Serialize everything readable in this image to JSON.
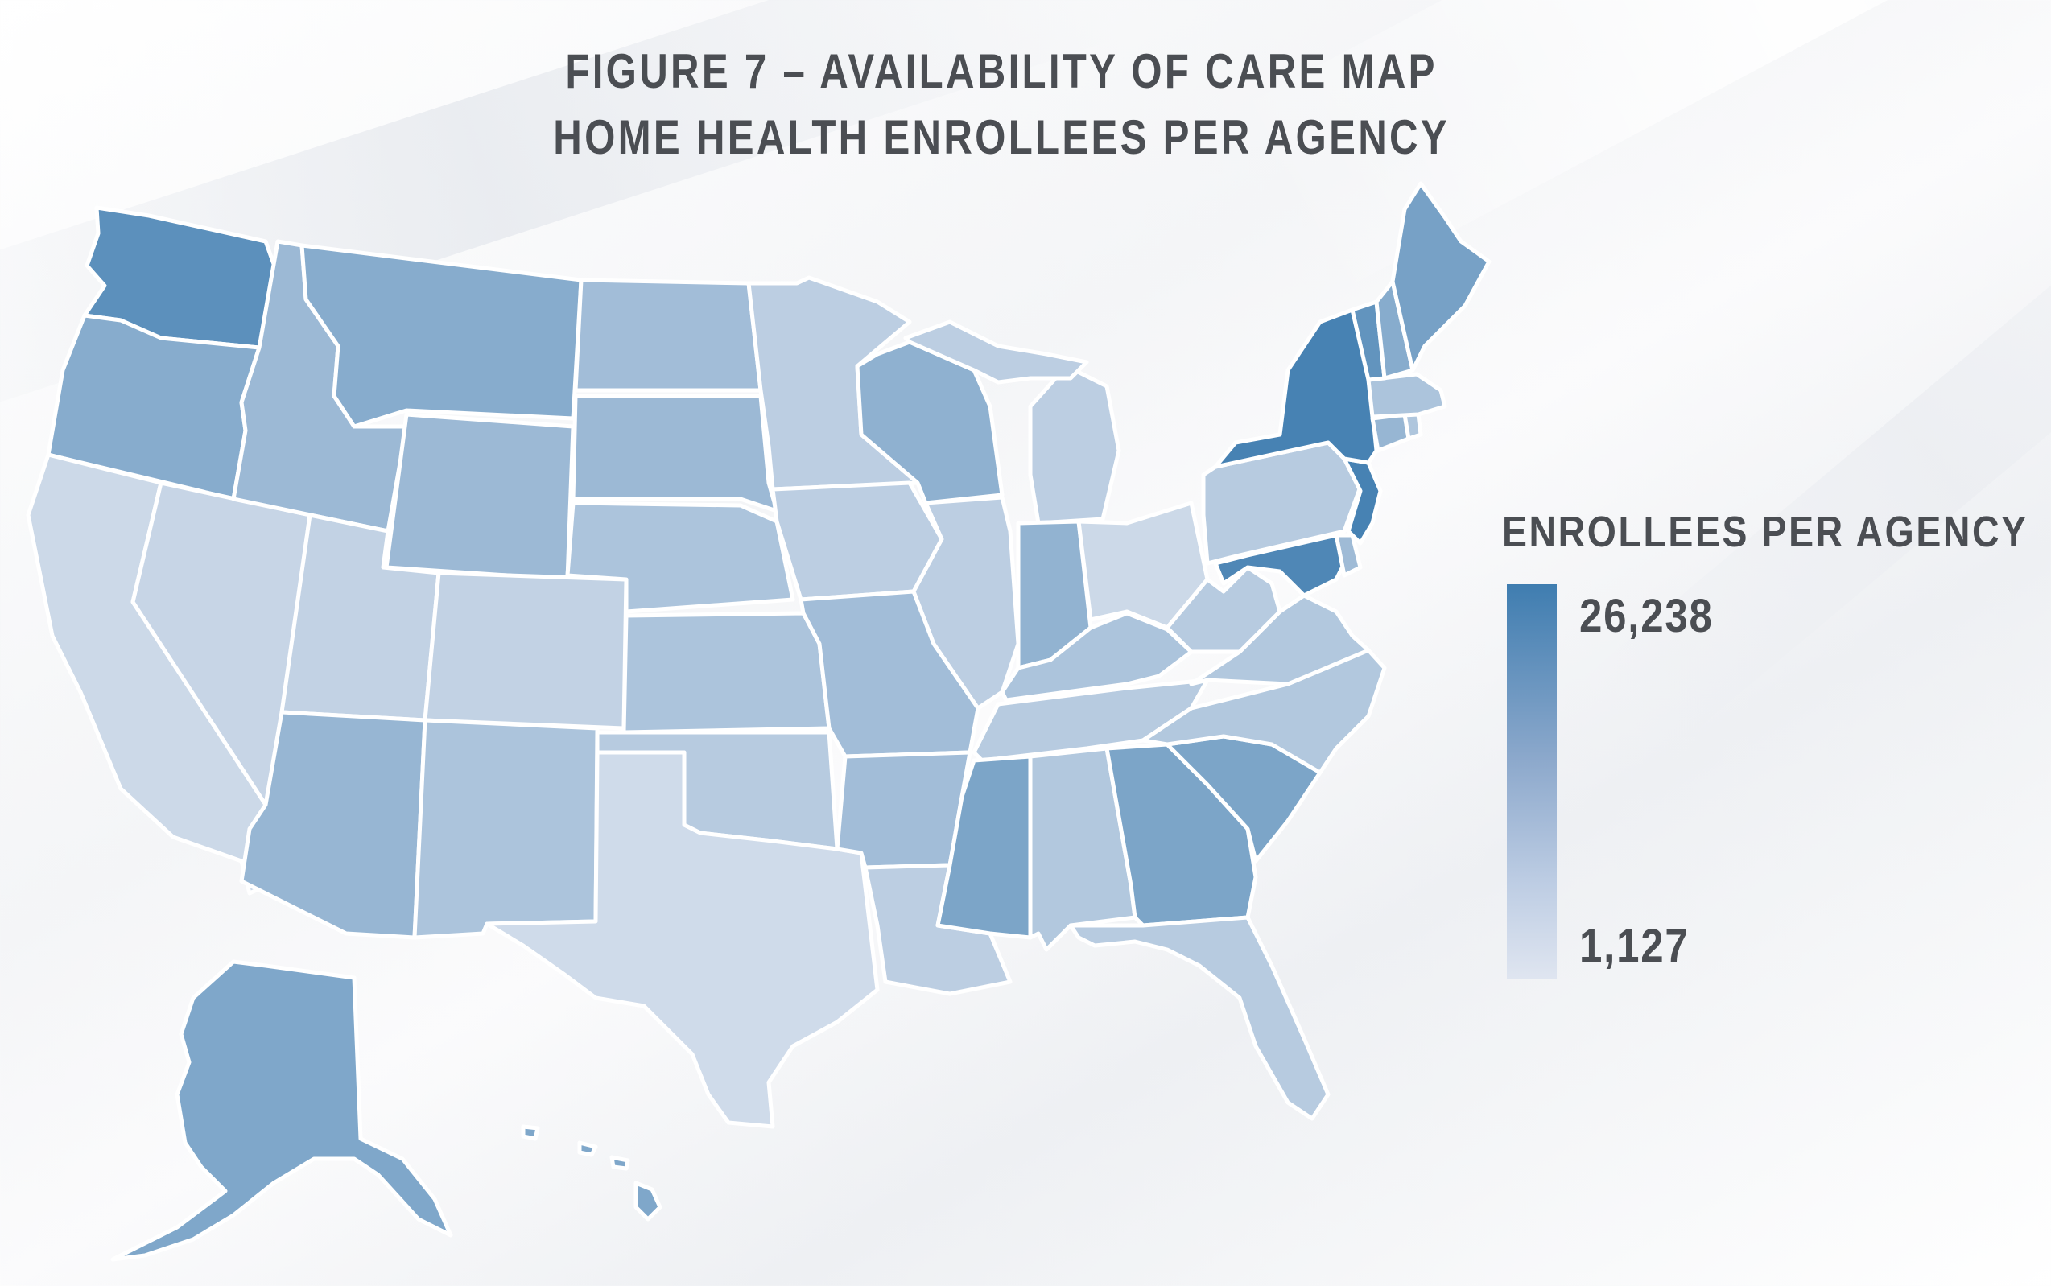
{
  "title": {
    "line1": "FIGURE 7 – AVAILABILITY OF CARE MAP",
    "line2": "HOME HEALTH ENROLLEES PER AGENCY"
  },
  "legend": {
    "title": "ENROLLEES PER AGENCY",
    "max_label": "26,238",
    "min_label": "1,127",
    "max_value": 26238,
    "min_value": 1127,
    "color_max": "#3f7db0",
    "color_min": "#dfe5f0"
  },
  "map": {
    "type": "choropleth",
    "region": "United States",
    "stroke_color": "#ffffff",
    "states": [
      {
        "id": "WA",
        "level": 0.82
      },
      {
        "id": "OR",
        "level": 0.55
      },
      {
        "id": "CA",
        "level": 0.12
      },
      {
        "id": "NV",
        "level": 0.15
      },
      {
        "id": "ID",
        "level": 0.42
      },
      {
        "id": "MT",
        "level": 0.55
      },
      {
        "id": "WY",
        "level": 0.42
      },
      {
        "id": "UT",
        "level": 0.18
      },
      {
        "id": "AZ",
        "level": 0.45
      },
      {
        "id": "CO",
        "level": 0.18
      },
      {
        "id": "NM",
        "level": 0.32
      },
      {
        "id": "ND",
        "level": 0.38
      },
      {
        "id": "SD",
        "level": 0.42
      },
      {
        "id": "NE",
        "level": 0.32
      },
      {
        "id": "KS",
        "level": 0.32
      },
      {
        "id": "OK",
        "level": 0.25
      },
      {
        "id": "TX",
        "level": 0.1
      },
      {
        "id": "MN",
        "level": 0.22
      },
      {
        "id": "IA",
        "level": 0.22
      },
      {
        "id": "MO",
        "level": 0.38
      },
      {
        "id": "AR",
        "level": 0.38
      },
      {
        "id": "LA",
        "level": 0.22
      },
      {
        "id": "WI",
        "level": 0.5
      },
      {
        "id": "IL",
        "level": 0.22
      },
      {
        "id": "MI",
        "level": 0.22
      },
      {
        "id": "IN",
        "level": 0.48
      },
      {
        "id": "OH",
        "level": 0.12
      },
      {
        "id": "KY",
        "level": 0.32
      },
      {
        "id": "TN",
        "level": 0.25
      },
      {
        "id": "MS",
        "level": 0.62
      },
      {
        "id": "AL",
        "level": 0.28
      },
      {
        "id": "GA",
        "level": 0.62
      },
      {
        "id": "FL",
        "level": 0.25
      },
      {
        "id": "SC",
        "level": 0.62
      },
      {
        "id": "NC",
        "level": 0.28
      },
      {
        "id": "VA",
        "level": 0.28
      },
      {
        "id": "WV",
        "level": 0.25
      },
      {
        "id": "PA",
        "level": 0.25
      },
      {
        "id": "NY",
        "level": 0.95
      },
      {
        "id": "VT",
        "level": 0.78
      },
      {
        "id": "NH",
        "level": 0.55
      },
      {
        "id": "ME",
        "level": 0.65
      },
      {
        "id": "MA",
        "level": 0.32
      },
      {
        "id": "RI",
        "level": 0.3
      },
      {
        "id": "CT",
        "level": 0.45
      },
      {
        "id": "NJ",
        "level": 0.95
      },
      {
        "id": "DE",
        "level": 0.4
      },
      {
        "id": "MD",
        "level": 0.9
      },
      {
        "id": "AK",
        "level": 0.6
      },
      {
        "id": "HI",
        "level": 0.6
      }
    ]
  }
}
